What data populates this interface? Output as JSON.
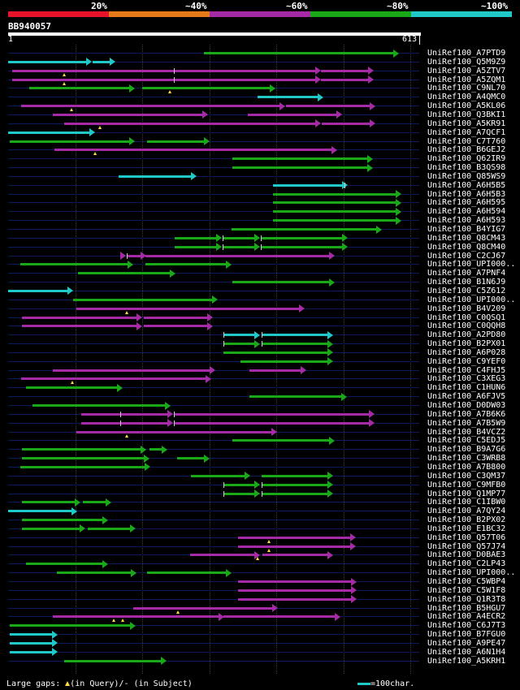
{
  "colors": {
    "green": "#18a818",
    "magenta": "#a52aa5",
    "cyan": "#20c8c8",
    "red": "#e8132b",
    "orange": "#e67a1a",
    "purple": "#a52aa5"
  },
  "header": {
    "scale_labels": [
      "20%",
      "~40%",
      "~60%",
      "~80%",
      "~100%"
    ],
    "query_id": "BB940057",
    "ruler_start": "1",
    "ruler_end": "613"
  },
  "legend": {
    "gaps_prefix": "Large gaps: ",
    "gaps_query": "(in Query)/",
    "gaps_dash": "-",
    "gaps_subject": " (in Subject)",
    "scale_text": "=100char."
  },
  "query_length": 613,
  "hits": [
    {
      "label": "UniRef100_A7PTD9",
      "c": "green",
      "segs": [
        [
          292,
          582,
          0
        ]
      ],
      "ticks": []
    },
    {
      "label": "UniRef100_Q5M9Z9",
      "c": "cyan",
      "segs": [
        [
          1,
          124,
          0
        ],
        [
          127,
          160,
          1
        ]
      ],
      "ticks": []
    },
    {
      "label": "UniRef100_A5ZTV7",
      "c": "magenta",
      "segs": [
        [
          7,
          465,
          0
        ],
        [
          467,
          544,
          1
        ]
      ],
      "ticks": [
        248
      ],
      "gaps": [
        85
      ]
    },
    {
      "label": "UniRef100_A5ZQM1",
      "c": "magenta",
      "segs": [
        [
          7,
          465,
          0
        ],
        [
          467,
          544,
          1
        ]
      ],
      "ticks": [
        248
      ],
      "gaps": [
        85
      ]
    },
    {
      "label": "UniRef100_C9NL70",
      "c": "green",
      "segs": [
        [
          33,
          188,
          0
        ],
        [
          200,
          398,
          1
        ]
      ],
      "ticks": [],
      "gaps": [
        242
      ]
    },
    {
      "label": "UniRef100_A4QMC0",
      "c": "cyan",
      "segs": [
        [
          372,
          469,
          1
        ]
      ],
      "ticks": []
    },
    {
      "label": "UniRef100_A5KL06",
      "c": "magenta",
      "segs": [
        [
          20,
          412,
          0
        ],
        [
          415,
          546,
          1
        ]
      ],
      "ticks": [],
      "gaps": [
        95
      ]
    },
    {
      "label": "UniRef100_Q3BKI1",
      "c": "magenta",
      "segs": [
        [
          68,
          297,
          0
        ],
        [
          358,
          497,
          1
        ]
      ],
      "ticks": []
    },
    {
      "label": "UniRef100_A5KR91",
      "c": "magenta",
      "segs": [
        [
          85,
          465,
          0
        ],
        [
          468,
          546,
          1
        ]
      ],
      "ticks": [],
      "gaps": [
        138
      ]
    },
    {
      "label": "UniRef100_A7QCF1",
      "c": "cyan",
      "segs": [
        [
          1,
          129,
          0
        ]
      ],
      "ticks": []
    },
    {
      "label": "UniRef100_C7T760",
      "c": "green",
      "segs": [
        [
          4,
          188,
          0
        ],
        [
          208,
          300,
          1
        ]
      ],
      "ticks": []
    },
    {
      "label": "UniRef100_B6GEJ2",
      "c": "magenta",
      "segs": [
        [
          70,
          490,
          0
        ]
      ],
      "ticks": [],
      "gaps": [
        131
      ]
    },
    {
      "label": "UniRef100_Q62IR9",
      "c": "green",
      "segs": [
        [
          335,
          543,
          0
        ]
      ],
      "ticks": []
    },
    {
      "label": "UniRef100_B3QS98",
      "c": "green",
      "segs": [
        [
          335,
          543,
          0
        ]
      ],
      "ticks": []
    },
    {
      "label": "UniRef100_Q85WS9",
      "c": "cyan",
      "segs": [
        [
          165,
          280,
          0
        ]
      ],
      "ticks": []
    },
    {
      "label": "UniRef100_A6H5B5",
      "c": "cyan",
      "segs": [
        [
          395,
          505,
          0
        ]
      ],
      "ticks": [
        502
      ]
    },
    {
      "label": "UniRef100_A6H5B3",
      "c": "green",
      "segs": [
        [
          395,
          585,
          0
        ]
      ],
      "ticks": []
    },
    {
      "label": "UniRef100_A6H595",
      "c": "green",
      "segs": [
        [
          395,
          585,
          0
        ]
      ],
      "ticks": []
    },
    {
      "label": "UniRef100_A6H594",
      "c": "green",
      "segs": [
        [
          395,
          585,
          0
        ]
      ],
      "ticks": []
    },
    {
      "label": "UniRef100_A6H593",
      "c": "green",
      "segs": [
        [
          395,
          585,
          0
        ]
      ],
      "ticks": []
    },
    {
      "label": "UniRef100_B4YIG7",
      "c": "green",
      "segs": [
        [
          334,
          556,
          0
        ]
      ],
      "ticks": []
    },
    {
      "label": "UniRef100_Q8CM43",
      "c": "green",
      "segs": [
        [
          249,
          318,
          0
        ],
        [
          320,
          375,
          1
        ],
        [
          377,
          505,
          2
        ]
      ],
      "ticks": [
        320,
        377
      ]
    },
    {
      "label": "UniRef100_Q8CM40",
      "c": "green",
      "segs": [
        [
          249,
          318,
          0
        ],
        [
          320,
          375,
          1
        ],
        [
          377,
          505,
          2
        ]
      ],
      "ticks": [
        320,
        377
      ]
    },
    {
      "label": "UniRef100_C2CJ67",
      "c": "magenta",
      "segs": [
        [
          168,
          175,
          0
        ],
        [
          178,
          205,
          1
        ],
        [
          206,
          486,
          2
        ]
      ],
      "ticks": [
        178
      ]
    },
    {
      "label": "UniRef100_UPI000..",
      "c": "green",
      "segs": [
        [
          19,
          186,
          0
        ],
        [
          205,
          332,
          1
        ]
      ],
      "ticks": []
    },
    {
      "label": "UniRef100_A7PNF4",
      "c": "green",
      "segs": [
        [
          105,
          249,
          0
        ]
      ],
      "ticks": []
    },
    {
      "label": "UniRef100_B1N6J9",
      "c": "green",
      "segs": [
        [
          335,
          486,
          0
        ]
      ],
      "ticks": []
    },
    {
      "label": "UniRef100_C5Z612",
      "c": "cyan",
      "segs": [
        [
          1,
          97,
          0
        ]
      ],
      "ticks": []
    },
    {
      "label": "UniRef100_UPI000..",
      "c": "green",
      "segs": [
        [
          98,
          312,
          0
        ]
      ],
      "ticks": []
    },
    {
      "label": "UniRef100_B4V209",
      "c": "magenta",
      "segs": [
        [
          103,
          441,
          0
        ]
      ],
      "ticks": [],
      "gaps": [
        178
      ]
    },
    {
      "label": "UniRef100_C0QSQ1",
      "c": "magenta",
      "segs": [
        [
          22,
          199,
          0
        ],
        [
          203,
          305,
          1
        ]
      ],
      "ticks": []
    },
    {
      "label": "UniRef100_C0QQH8",
      "c": "magenta",
      "segs": [
        [
          22,
          199,
          0
        ],
        [
          203,
          305,
          1
        ]
      ],
      "ticks": []
    },
    {
      "label": "UniRef100_A2PD80",
      "c": "cyan",
      "segs": [
        [
          322,
          375,
          0
        ],
        [
          378,
          484,
          1
        ]
      ],
      "ticks": [
        322,
        378
      ]
    },
    {
      "label": "UniRef100_B2PX01",
      "c": "green",
      "segs": [
        [
          322,
          375,
          0
        ],
        [
          378,
          484,
          1
        ]
      ],
      "ticks": [
        322,
        378
      ]
    },
    {
      "label": "UniRef100_A6P028",
      "c": "green",
      "segs": [
        [
          322,
          484,
          0
        ]
      ],
      "ticks": []
    },
    {
      "label": "UniRef100_C9YEF0",
      "c": "green",
      "segs": [
        [
          347,
          484,
          0
        ]
      ],
      "ticks": []
    },
    {
      "label": "UniRef100_C4FHJ5",
      "c": "magenta",
      "segs": [
        [
          68,
          308,
          0
        ],
        [
          360,
          444,
          1
        ]
      ],
      "ticks": []
    },
    {
      "label": "UniRef100_C3XEG3",
      "c": "magenta",
      "segs": [
        [
          20,
          302,
          0
        ]
      ],
      "ticks": [],
      "gaps": [
        96
      ]
    },
    {
      "label": "UniRef100_C1HUN6",
      "c": "green",
      "segs": [
        [
          28,
          170,
          0
        ]
      ],
      "ticks": []
    },
    {
      "label": "UniRef100_A6FJV5",
      "c": "green",
      "segs": [
        [
          360,
          504,
          0
        ]
      ],
      "ticks": []
    },
    {
      "label": "UniRef100_D0DW03",
      "c": "green",
      "segs": [
        [
          37,
          242,
          0
        ]
      ],
      "ticks": []
    },
    {
      "label": "UniRef100_A7B6K6",
      "c": "magenta",
      "segs": [
        [
          110,
          245,
          0
        ],
        [
          248,
          545,
          1
        ]
      ],
      "ticks": [
        168,
        248
      ]
    },
    {
      "label": "UniRef100_A7B5W9",
      "c": "magenta",
      "segs": [
        [
          110,
          245,
          0
        ],
        [
          248,
          545,
          1
        ]
      ],
      "ticks": [
        168,
        248
      ]
    },
    {
      "label": "UniRef100_B4VCZ2",
      "c": "magenta",
      "segs": [
        [
          103,
          400,
          0
        ]
      ],
      "ticks": [],
      "gaps": [
        178
      ]
    },
    {
      "label": "UniRef100_C5EDJ5",
      "c": "green",
      "segs": [
        [
          335,
          486,
          0
        ]
      ],
      "ticks": []
    },
    {
      "label": "UniRef100_B9A7G6",
      "c": "green",
      "segs": [
        [
          21,
          206,
          0
        ],
        [
          212,
          237,
          1
        ]
      ],
      "ticks": []
    },
    {
      "label": "UniRef100_C3WRB8",
      "c": "green",
      "segs": [
        [
          21,
          210,
          0
        ],
        [
          253,
          300,
          1
        ]
      ],
      "ticks": []
    },
    {
      "label": "UniRef100_A7B800",
      "c": "green",
      "segs": [
        [
          19,
          212,
          0
        ]
      ],
      "ticks": []
    },
    {
      "label": "UniRef100_C3QM37",
      "c": "green",
      "segs": [
        [
          273,
          360,
          0
        ],
        [
          378,
          484,
          1
        ]
      ],
      "ticks": []
    },
    {
      "label": "UniRef100_C9MFB0",
      "c": "green",
      "segs": [
        [
          322,
          375,
          0
        ],
        [
          378,
          484,
          1
        ]
      ],
      "ticks": [
        322,
        378
      ]
    },
    {
      "label": "UniRef100_Q1MP77",
      "c": "green",
      "segs": [
        [
          322,
          375,
          0
        ],
        [
          378,
          484,
          1
        ]
      ],
      "ticks": [
        322,
        378
      ]
    },
    {
      "label": "UniRef100_C1IBW0",
      "c": "green",
      "segs": [
        [
          22,
          108,
          0
        ],
        [
          112,
          153,
          1
        ]
      ],
      "ticks": []
    },
    {
      "label": "UniRef100_A7QY24",
      "c": "cyan",
      "segs": [
        [
          1,
          103,
          0
        ]
      ],
      "ticks": []
    },
    {
      "label": "UniRef100_B2PX02",
      "c": "green",
      "segs": [
        [
          22,
          148,
          0
        ]
      ],
      "ticks": []
    },
    {
      "label": "UniRef100_E1BC32",
      "c": "green",
      "segs": [
        [
          22,
          115,
          0
        ],
        [
          120,
          190,
          1
        ]
      ],
      "ticks": []
    },
    {
      "label": "UniRef100_Q57T06",
      "c": "magenta",
      "segs": [
        [
          343,
          518,
          0
        ]
      ],
      "ticks": [],
      "gaps": [
        389
      ]
    },
    {
      "label": "UniRef100_Q57J74",
      "c": "magenta",
      "segs": [
        [
          343,
          518,
          0
        ]
      ],
      "ticks": [],
      "gaps": [
        389
      ]
    },
    {
      "label": "UniRef100_D0BAE3",
      "c": "magenta",
      "segs": [
        [
          272,
          375,
          0
        ],
        [
          380,
          484,
          1
        ]
      ],
      "ticks": [],
      "gaps": [
        372
      ]
    },
    {
      "label": "UniRef100_C2LP43",
      "c": "green",
      "segs": [
        [
          28,
          149,
          0
        ]
      ],
      "ticks": []
    },
    {
      "label": "UniRef100_UPI000..",
      "c": "green",
      "segs": [
        [
          74,
          191,
          0
        ],
        [
          208,
          333,
          1
        ]
      ],
      "ticks": []
    },
    {
      "label": "UniRef100_C5WBP4",
      "c": "magenta",
      "segs": [
        [
          343,
          519,
          0
        ]
      ],
      "ticks": []
    },
    {
      "label": "UniRef100_C5W1F8",
      "c": "magenta",
      "segs": [
        [
          343,
          519,
          0
        ]
      ],
      "ticks": []
    },
    {
      "label": "UniRef100_Q1R3T8",
      "c": "magenta",
      "segs": [
        [
          343,
          519,
          0
        ]
      ],
      "ticks": []
    },
    {
      "label": "UniRef100_B5HGU7",
      "c": "magenta",
      "segs": [
        [
          187,
          401,
          0
        ]
      ],
      "ticks": [],
      "gaps": [
        254
      ]
    },
    {
      "label": "UniRef100_A4ECR2",
      "c": "magenta",
      "segs": [
        [
          68,
          321,
          0
        ],
        [
          322,
          495,
          1
        ]
      ],
      "ticks": [],
      "gaps": [
        158,
        172
      ]
    },
    {
      "label": "UniRef100_C6J7T3",
      "c": "green",
      "segs": [
        [
          4,
          190,
          0
        ]
      ],
      "ticks": []
    },
    {
      "label": "UniRef100_B7FGU0",
      "c": "cyan",
      "segs": [
        [
          4,
          73,
          0
        ]
      ],
      "ticks": []
    },
    {
      "label": "UniRef100_A9PE47",
      "c": "cyan",
      "segs": [
        [
          4,
          73,
          0
        ]
      ],
      "ticks": []
    },
    {
      "label": "UniRef100_A6N1H4",
      "c": "cyan",
      "segs": [
        [
          4,
          73,
          0
        ]
      ],
      "ticks": []
    },
    {
      "label": "UniRef100_A5KRH1",
      "c": "green",
      "segs": [
        [
          85,
          236,
          0
        ]
      ],
      "ticks": []
    }
  ]
}
